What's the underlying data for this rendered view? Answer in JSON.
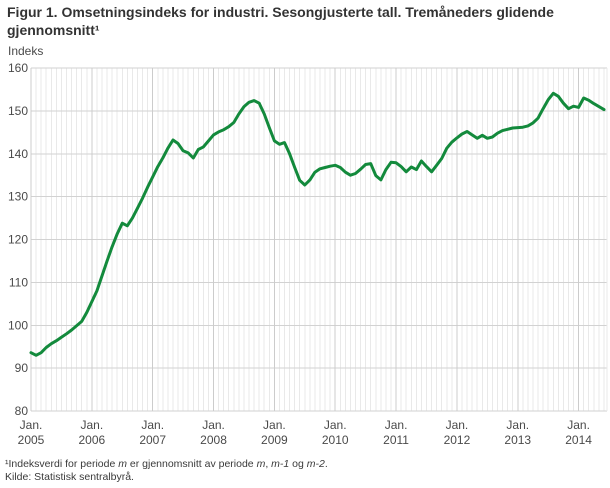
{
  "header": {
    "title": "Figur 1. Omsetningsindeks for industri. Sesongjusterte tall. Tremåneders glidende gjennomsnitt¹"
  },
  "chart_data": {
    "type": "line",
    "title": "Figur 1. Omsetningsindeks for industri. Sesongjusterte tall. Tremåneders glidende gjennomsnitt¹",
    "ylabel": "Indeks",
    "xlabel": "",
    "x_start": "2005-01",
    "x_frequency": "monthly",
    "ylim": [
      80,
      160
    ],
    "yticks": [
      160,
      150,
      140,
      130,
      120,
      110,
      100,
      90,
      80
    ],
    "grid": "both",
    "legend": "none",
    "months_per_x_tick": 12,
    "x_tick_labels": [
      {
        "line1": "Jan.",
        "line2": "2005"
      },
      {
        "line1": "Jan.",
        "line2": "2006"
      },
      {
        "line1": "Jan.",
        "line2": "2007"
      },
      {
        "line1": "Jan.",
        "line2": "2008"
      },
      {
        "line1": "Jan.",
        "line2": "2009"
      },
      {
        "line1": "Jan.",
        "line2": "2010"
      },
      {
        "line1": "Jan.",
        "line2": "2011"
      },
      {
        "line1": "Jan.",
        "line2": "2012"
      },
      {
        "line1": "Jan.",
        "line2": "2013"
      },
      {
        "line1": "Jan.",
        "line2": "2014"
      }
    ],
    "series": [
      {
        "name": "Omsetningsindeks for industri",
        "color": "#138a3c",
        "values": [
          93.6,
          93.0,
          93.6,
          94.8,
          95.7,
          96.4,
          97.2,
          98.0,
          98.9,
          99.9,
          100.9,
          103.0,
          105.5,
          108.0,
          111.5,
          115.0,
          118.3,
          121.3,
          123.8,
          123.2,
          125.0,
          127.3,
          129.6,
          132.2,
          134.6,
          137.0,
          139.0,
          141.3,
          143.2,
          142.4,
          140.7,
          140.2,
          139.0,
          141.0,
          141.6,
          143.0,
          144.4,
          145.1,
          145.6,
          146.3,
          147.3,
          149.3,
          151.0,
          152.0,
          152.4,
          151.8,
          149.3,
          146.1,
          143.0,
          142.2,
          142.6,
          140.0,
          136.8,
          133.8,
          132.7,
          133.9,
          135.7,
          136.5,
          136.8,
          137.1,
          137.3,
          136.8,
          135.7,
          135.0,
          135.4,
          136.4,
          137.5,
          137.7,
          134.9,
          133.9,
          136.3,
          138.0,
          137.9,
          137.0,
          135.8,
          136.9,
          136.3,
          138.3,
          137.0,
          135.8,
          137.3,
          138.9,
          141.3,
          142.7,
          143.7,
          144.6,
          145.2,
          144.4,
          143.6,
          144.3,
          143.6,
          143.9,
          144.8,
          145.4,
          145.7,
          146.0,
          146.1,
          146.2,
          146.5,
          147.2,
          148.3,
          150.5,
          152.6,
          154.1,
          153.4,
          151.8,
          150.5,
          151.1,
          150.8,
          153.0,
          152.5,
          151.7,
          151.0,
          150.3
        ]
      }
    ]
  },
  "footnotes": {
    "note1_segments": [
      {
        "text": "¹Indeksverdi for periode "
      },
      {
        "text": "m",
        "italic": true
      },
      {
        "text": " er gjennomsnitt av periode "
      },
      {
        "text": "m",
        "italic": true
      },
      {
        "text": ", "
      },
      {
        "text": "m-1",
        "italic": true
      },
      {
        "text": " og "
      },
      {
        "text": "m-2",
        "italic": true
      },
      {
        "text": "."
      }
    ],
    "source": "Kilde: Statistisk sentralbyrå."
  },
  "colors": {
    "line": "#138a3c",
    "grid_minor": "#e9e9e9",
    "grid_major": "#cccccc",
    "grid_horizontal": "#d2d2d2",
    "tick_text": "#4a4a4a",
    "title_text": "#333333",
    "background": "#ffffff"
  }
}
